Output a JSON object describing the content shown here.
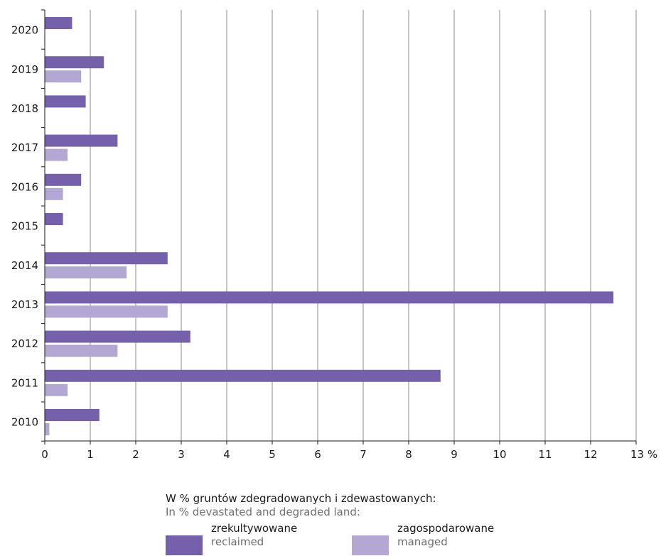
{
  "chart_data": {
    "type": "bar",
    "orientation": "horizontal",
    "categories": [
      "2020",
      "2019",
      "2018",
      "2017",
      "2016",
      "2015",
      "2014",
      "2013",
      "2012",
      "2011",
      "2010"
    ],
    "series": [
      {
        "name": "zrekultywowane",
        "name_en": "reclaimed",
        "color": "#7560ab",
        "values": [
          0.6,
          1.3,
          0.9,
          1.6,
          0.8,
          0.4,
          2.7,
          12.5,
          3.2,
          8.7,
          1.2
        ]
      },
      {
        "name": "zagospodarowane",
        "name_en": "managed",
        "color": "#b3a7d3",
        "values": [
          null,
          0.8,
          null,
          0.5,
          0.4,
          null,
          1.8,
          2.7,
          1.6,
          0.5,
          0.1
        ]
      }
    ],
    "x_ticks": [
      "0",
      "1",
      "2",
      "3",
      "4",
      "5",
      "6",
      "7",
      "8",
      "9",
      "10",
      "11",
      "12",
      "13 %"
    ],
    "xlim": [
      0,
      13
    ],
    "grid": "vertical",
    "legend_position": "bottom"
  },
  "legend": {
    "title": "W % gruntów zdegradowanych i zdewastowanych:",
    "subtitle": "In % devastated and degraded land:"
  }
}
